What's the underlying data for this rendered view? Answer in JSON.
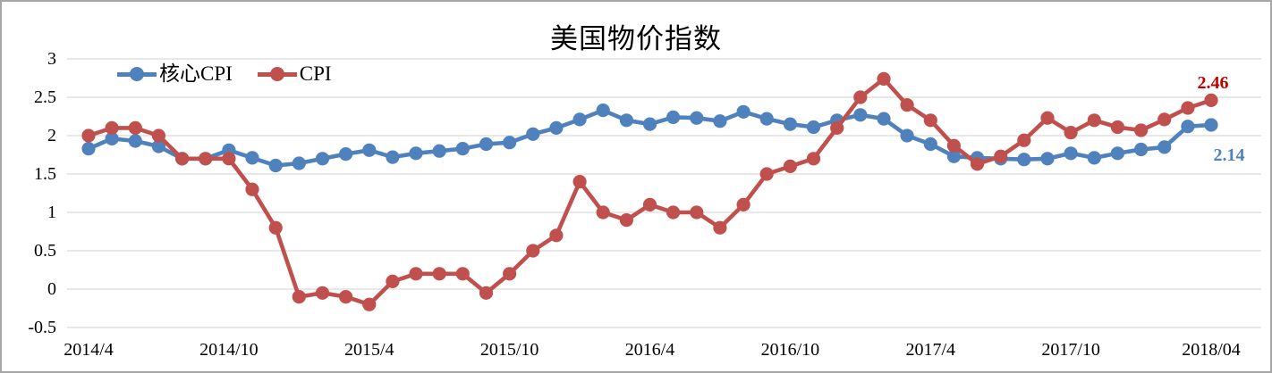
{
  "chart_data": {
    "type": "line",
    "title": "美国物价指数",
    "x_tick_labels": [
      "2014/4",
      "2014/10",
      "2015/4",
      "2015/10",
      "2016/4",
      "2016/10",
      "2017/4",
      "2017/10",
      "2018/04"
    ],
    "x_tick_indices": [
      0,
      6,
      12,
      18,
      24,
      30,
      36,
      42,
      48
    ],
    "n_points": 49,
    "x_start": "2014/4",
    "x_end": "2018/04",
    "x_step": "1 month",
    "y_tick_labels": [
      "3",
      "2.5",
      "2",
      "1.5",
      "1",
      "0.5",
      "0",
      "-0.5"
    ],
    "y_tick_values": [
      3,
      2.5,
      2,
      1.5,
      1,
      0.5,
      0,
      -0.5
    ],
    "ylim": [
      -0.5,
      3
    ],
    "grid": "horizontal",
    "gridline_color": "#d9d9d9",
    "legend_position": "top-left-inside",
    "series": [
      {
        "id": "core-cpi",
        "name": "核心CPI",
        "color": "#4F81BD",
        "values": [
          1.83,
          1.96,
          1.93,
          1.86,
          1.7,
          1.7,
          1.81,
          1.71,
          1.61,
          1.64,
          1.7,
          1.76,
          1.81,
          1.72,
          1.77,
          1.8,
          1.83,
          1.89,
          1.91,
          2.02,
          2.1,
          2.21,
          2.33,
          2.2,
          2.15,
          2.24,
          2.23,
          2.19,
          2.31,
          2.22,
          2.15,
          2.11,
          2.2,
          2.27,
          2.22,
          2.0,
          1.89,
          1.73,
          1.71,
          1.7,
          1.69,
          1.7,
          1.77,
          1.71,
          1.77,
          1.82,
          1.85,
          2.12,
          2.14
        ],
        "end_label": "2.14",
        "end_label_color": "#4F81BD"
      },
      {
        "id": "cpi",
        "name": "CPI",
        "color": "#C0504D",
        "values": [
          2.0,
          2.1,
          2.1,
          2.0,
          1.7,
          1.7,
          1.7,
          1.3,
          0.8,
          -0.1,
          -0.05,
          -0.1,
          -0.2,
          0.1,
          0.2,
          0.2,
          0.2,
          -0.05,
          0.2,
          0.5,
          0.7,
          1.4,
          1.0,
          0.9,
          1.1,
          1.0,
          1.0,
          0.8,
          1.1,
          1.5,
          1.6,
          1.7,
          2.1,
          2.5,
          2.74,
          2.4,
          2.2,
          1.87,
          1.63,
          1.73,
          1.94,
          2.23,
          2.04,
          2.2,
          2.11,
          2.07,
          2.21,
          2.36,
          2.46
        ],
        "end_label": "2.46",
        "end_label_color": "#C00000"
      }
    ]
  },
  "frame": {
    "border_color": "#a6a6a6",
    "background_color": "#ffffff"
  }
}
